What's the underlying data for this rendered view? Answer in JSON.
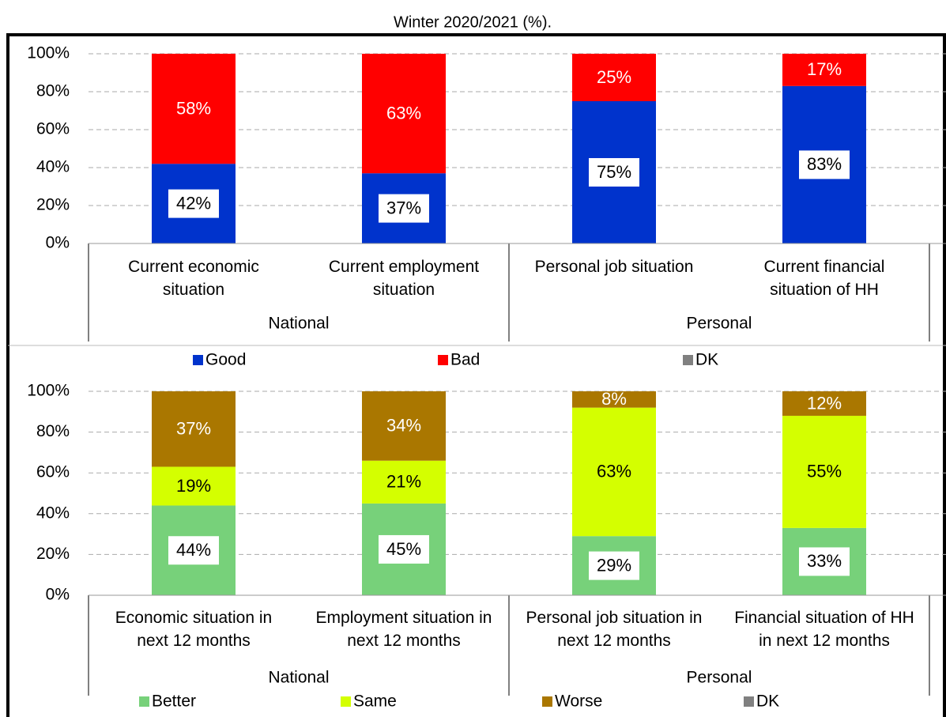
{
  "title": "Winter 2020/2021 (%).",
  "chart_data": [
    {
      "type": "bar",
      "stacked": true,
      "categories": [
        "Current economic situation",
        "Current employment situation",
        "Personal job situation",
        "Current financial situation of HH"
      ],
      "group_labels": [
        "National",
        "Personal"
      ],
      "series": [
        {
          "name": "Good",
          "color": "#0033cc",
          "values": [
            42,
            37,
            75,
            83
          ],
          "value_labels": [
            "42%",
            "37%",
            "75%",
            "83%"
          ]
        },
        {
          "name": "Bad",
          "color": "#ff0000",
          "values": [
            58,
            63,
            25,
            17
          ],
          "value_labels": [
            "58%",
            "63%",
            "25%",
            "17%"
          ]
        },
        {
          "name": "DK",
          "color": "#808080",
          "values": [
            0,
            0,
            0,
            0
          ]
        }
      ],
      "ylim": [
        0,
        100
      ],
      "yticks": [
        {
          "value": 0,
          "label": "0%"
        },
        {
          "value": 20,
          "label": "20%"
        },
        {
          "value": 40,
          "label": "40%"
        },
        {
          "value": 60,
          "label": "60%"
        },
        {
          "value": 80,
          "label": "80%"
        },
        {
          "value": 100,
          "label": "100%"
        }
      ],
      "grid": true
    },
    {
      "type": "bar",
      "stacked": true,
      "categories": [
        "Economic situation in next 12 months",
        "Employment situation in next 12 months",
        "Personal job situation in next 12 months",
        "Financial situation of HH in next 12 months"
      ],
      "group_labels": [
        "National",
        "Personal"
      ],
      "series": [
        {
          "name": "Better",
          "color": "#77d17a",
          "values": [
            44,
            45,
            29,
            33
          ],
          "value_labels": [
            "44%",
            "45%",
            "29%",
            "33%"
          ]
        },
        {
          "name": "Same",
          "color": "#d4ff00",
          "values": [
            19,
            21,
            63,
            55
          ],
          "value_labels": [
            "19%",
            "21%",
            "63%",
            "55%"
          ]
        },
        {
          "name": "Worse",
          "color": "#aa7700",
          "values": [
            37,
            34,
            8,
            12
          ],
          "value_labels": [
            "37%",
            "34%",
            "8%",
            "12%"
          ]
        },
        {
          "name": "DK",
          "color": "#808080",
          "values": [
            0,
            0,
            0,
            0
          ]
        }
      ],
      "ylim": [
        0,
        100
      ],
      "yticks": [
        {
          "value": 0,
          "label": "0%"
        },
        {
          "value": 20,
          "label": "20%"
        },
        {
          "value": 40,
          "label": "40%"
        },
        {
          "value": 60,
          "label": "60%"
        },
        {
          "value": 80,
          "label": "80%"
        },
        {
          "value": 100,
          "label": "100%"
        }
      ],
      "grid": true
    }
  ]
}
